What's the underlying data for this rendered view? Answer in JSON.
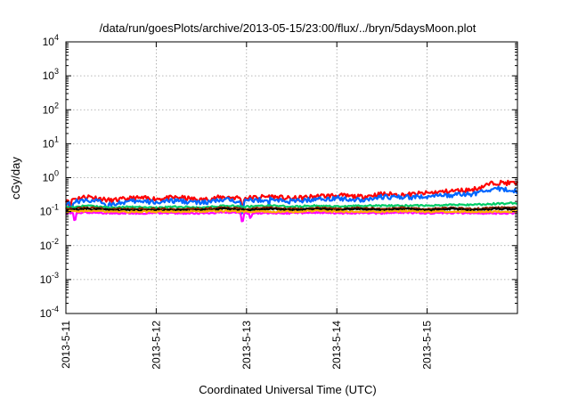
{
  "chart_data": {
    "type": "line",
    "title": "/data/run/goesPlots/archive/2013-05-15/23:00/flux/../bryn/5daysMoon.plot",
    "xlabel": "Coordinated Universal Time (UTC)",
    "ylabel": "cGy/day",
    "yscale": "log",
    "ylim": [
      0.0001,
      10000
    ],
    "xlim": [
      "2013-05-11",
      "2013-05-16"
    ],
    "grid": true,
    "x_tick_labels": [
      "2013-5-11",
      "2013-5-12",
      "2013-5-13",
      "2013-5-14",
      "2013-5-15"
    ],
    "y_ticks": [
      {
        "base": "10",
        "exp": "-4",
        "value": 0.0001
      },
      {
        "base": "10",
        "exp": "-3",
        "value": 0.001
      },
      {
        "base": "10",
        "exp": "-2",
        "value": 0.01
      },
      {
        "base": "10",
        "exp": "-1",
        "value": 0.1
      },
      {
        "base": "10",
        "exp": "0",
        "value": 1
      },
      {
        "base": "10",
        "exp": "1",
        "value": 10
      },
      {
        "base": "10",
        "exp": "2",
        "value": 100
      },
      {
        "base": "10",
        "exp": "3",
        "value": 1000
      },
      {
        "base": "10",
        "exp": "4",
        "value": 10000
      }
    ],
    "x_day_values": [
      0,
      0.25,
      0.5,
      0.75,
      1,
      1.25,
      1.5,
      1.75,
      2,
      2.25,
      2.5,
      2.75,
      3,
      3.25,
      3.5,
      3.75,
      4,
      4.25,
      4.5,
      4.75,
      5
    ],
    "series": [
      {
        "color": "#ff0000",
        "values": [
          0.22,
          0.28,
          0.21,
          0.25,
          0.24,
          0.26,
          0.22,
          0.27,
          0.25,
          0.28,
          0.24,
          0.28,
          0.3,
          0.27,
          0.33,
          0.31,
          0.35,
          0.4,
          0.44,
          0.72,
          0.68
        ],
        "dips": [
          [
            0.05,
            0.55
          ],
          [
            1.95,
            0.55
          ]
        ]
      },
      {
        "color": "#0066ff",
        "values": [
          0.18,
          0.22,
          0.17,
          0.2,
          0.19,
          0.21,
          0.18,
          0.22,
          0.21,
          0.23,
          0.2,
          0.23,
          0.25,
          0.22,
          0.27,
          0.26,
          0.28,
          0.3,
          0.33,
          0.48,
          0.4
        ],
        "dips": [
          [
            0.06,
            0.5
          ],
          [
            0.45,
            0.6
          ],
          [
            1.95,
            0.45
          ],
          [
            2.25,
            0.6
          ]
        ]
      },
      {
        "color": "#00cc66",
        "values": [
          0.13,
          0.15,
          0.13,
          0.14,
          0.13,
          0.14,
          0.13,
          0.15,
          0.14,
          0.15,
          0.14,
          0.15,
          0.14,
          0.15,
          0.15,
          0.15,
          0.15,
          0.16,
          0.16,
          0.17,
          0.18
        ],
        "dips": []
      },
      {
        "color": "#8b2500",
        "values": [
          0.12,
          0.13,
          0.12,
          0.12,
          0.12,
          0.12,
          0.12,
          0.13,
          0.12,
          0.13,
          0.12,
          0.13,
          0.12,
          0.13,
          0.12,
          0.13,
          0.12,
          0.13,
          0.12,
          0.13,
          0.13
        ],
        "dips": []
      },
      {
        "color": "#000000",
        "values": [
          0.11,
          0.12,
          0.11,
          0.11,
          0.11,
          0.11,
          0.11,
          0.12,
          0.11,
          0.12,
          0.11,
          0.12,
          0.11,
          0.12,
          0.11,
          0.12,
          0.11,
          0.12,
          0.11,
          0.12,
          0.12
        ],
        "dips": []
      },
      {
        "color": "#ff00ff",
        "values": [
          0.09,
          0.095,
          0.09,
          0.09,
          0.092,
          0.09,
          0.09,
          0.095,
          0.09,
          0.092,
          0.09,
          0.095,
          0.09,
          0.092,
          0.09,
          0.095,
          0.09,
          0.092,
          0.09,
          0.09,
          0.09
        ],
        "dips": [
          [
            0.1,
            0.6
          ],
          [
            1.95,
            0.6
          ],
          [
            2.05,
            0.75
          ]
        ]
      },
      {
        "color": "#ffb000",
        "values": [
          0.1,
          0.105,
          0.1,
          0.1,
          0.1,
          0.1,
          0.1,
          0.105,
          0.1,
          0.1,
          0.1,
          0.105,
          0.1,
          0.1,
          0.1,
          0.105,
          0.1,
          0.1,
          0.1,
          0.1,
          0.1
        ],
        "dips": []
      }
    ]
  }
}
